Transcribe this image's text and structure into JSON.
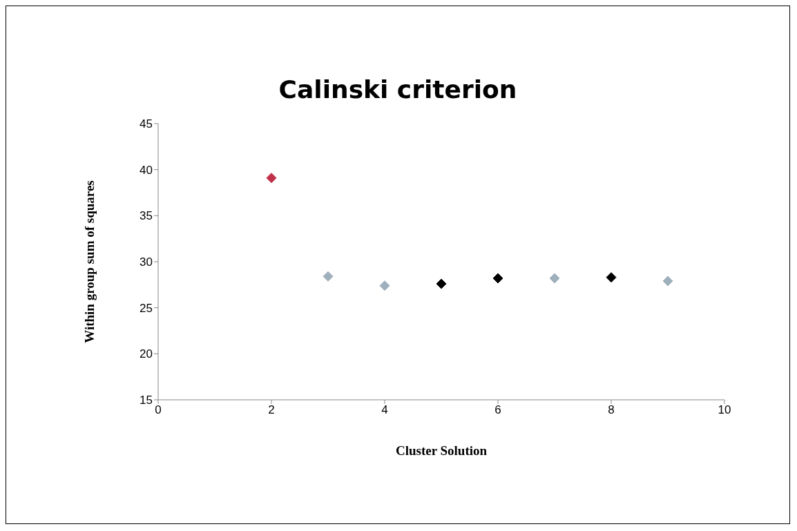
{
  "chart_data": {
    "type": "scatter",
    "title": "Calinski criterion",
    "xlabel": "Cluster Solution",
    "ylabel": "Within group sum of squares",
    "xlim": [
      0,
      10
    ],
    "xticks": [
      0,
      2,
      4,
      6,
      8,
      10
    ],
    "ylim": [
      15,
      45
    ],
    "yticks": [
      15,
      20,
      25,
      30,
      35,
      40,
      45
    ],
    "grid": false,
    "legend": false,
    "marker": "diamond",
    "series": [
      {
        "color": "#c0304a",
        "x": [
          2
        ],
        "values": [
          39.1
        ]
      },
      {
        "color": "#9fb0bd",
        "x": [
          3,
          4,
          7,
          9
        ],
        "values": [
          28.4,
          27.4,
          28.2,
          27.9
        ]
      },
      {
        "color": "#000000",
        "x": [
          5,
          6,
          8
        ],
        "values": [
          27.6,
          28.2,
          28.3
        ]
      }
    ]
  }
}
